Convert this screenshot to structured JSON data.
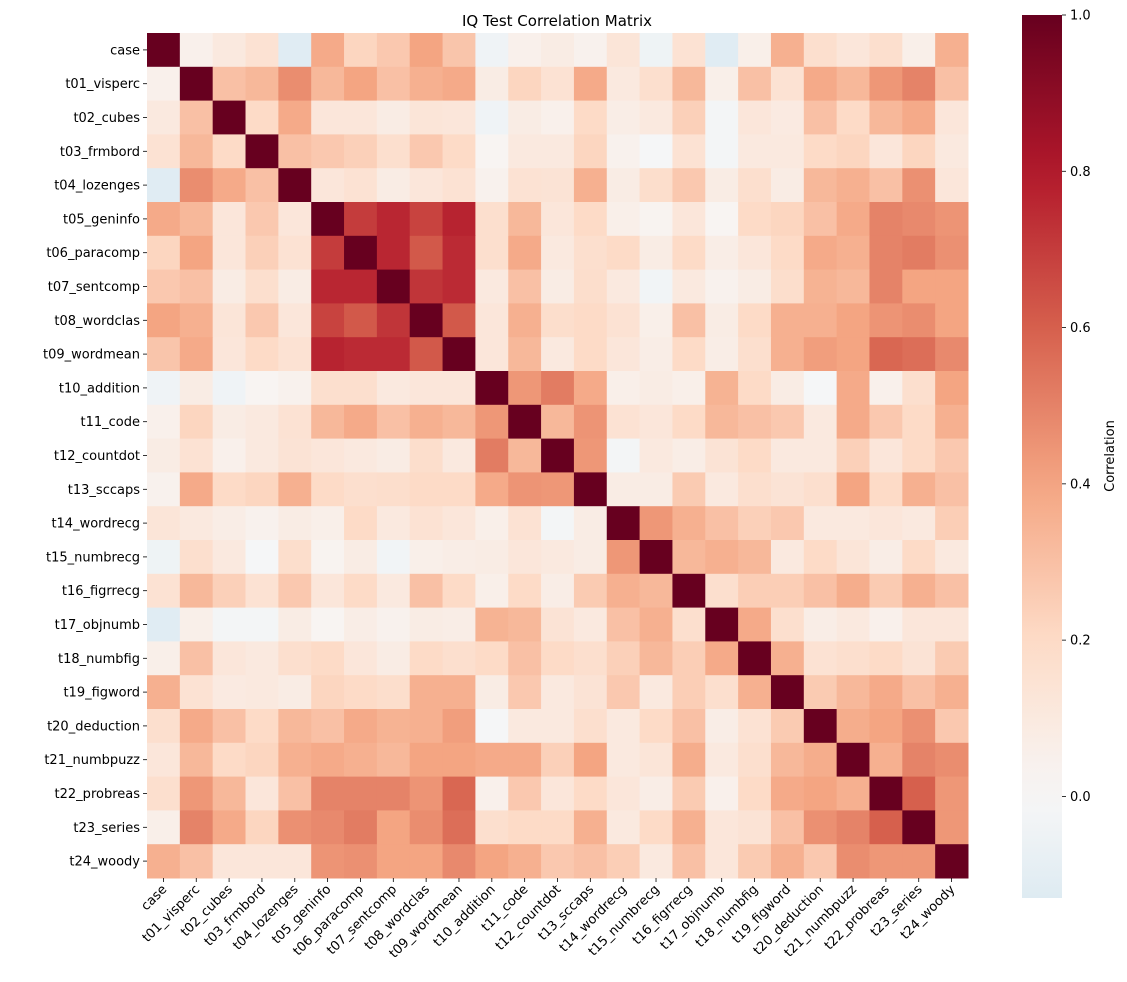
{
  "chart_data": {
    "type": "heatmap",
    "title": "IQ Test Correlation Matrix",
    "labels": [
      "case",
      "t01_visperc",
      "t02_cubes",
      "t03_frmbord",
      "t04_lozenges",
      "t05_geninfo",
      "t06_paracomp",
      "t07_sentcomp",
      "t08_wordclas",
      "t09_wordmean",
      "t10_addition",
      "t11_code",
      "t12_countdot",
      "t13_sccaps",
      "t14_wordrecg",
      "t15_numbrecg",
      "t16_figrrecg",
      "t17_objnumb",
      "t18_numbfig",
      "t19_figword",
      "t20_deduction",
      "t21_numbpuzz",
      "t22_probreas",
      "t23_series",
      "t24_woody"
    ],
    "colorbar": {
      "label": "Correlation",
      "range": [
        -0.13,
        1.0
      ],
      "center": 0,
      "ticks": [
        0.0,
        0.2,
        0.4,
        0.6,
        0.8,
        1.0
      ],
      "tick_labels": [
        "0.0",
        "0.2",
        "0.4",
        "0.6",
        "0.8",
        "1.0"
      ],
      "colormap": "RdBu_r"
    },
    "values": [
      [
        1,
        0.05,
        0.1,
        0.15,
        -0.12,
        0.38,
        0.22,
        0.27,
        0.4,
        0.28,
        -0.04,
        0.05,
        0.08,
        0.04,
        0.13,
        -0.05,
        0.15,
        -0.12,
        0.06,
        0.36,
        0.17,
        0.12,
        0.17,
        0.06,
        0.36
      ],
      [
        0.05,
        1,
        0.3,
        0.33,
        0.47,
        0.33,
        0.4,
        0.3,
        0.36,
        0.38,
        0.08,
        0.22,
        0.15,
        0.38,
        0.1,
        0.17,
        0.33,
        0.06,
        0.3,
        0.15,
        0.38,
        0.33,
        0.44,
        0.5,
        0.3
      ],
      [
        0.1,
        0.3,
        1,
        0.2,
        0.38,
        0.12,
        0.12,
        0.08,
        0.13,
        0.12,
        -0.04,
        0.08,
        0.05,
        0.2,
        0.07,
        0.1,
        0.24,
        -0.02,
        0.12,
        0.09,
        0.3,
        0.2,
        0.33,
        0.38,
        0.12
      ],
      [
        0.15,
        0.33,
        0.2,
        1,
        0.3,
        0.27,
        0.24,
        0.17,
        0.27,
        0.2,
        0.02,
        0.1,
        0.1,
        0.22,
        0.04,
        -0.01,
        0.15,
        -0.02,
        0.1,
        0.1,
        0.2,
        0.22,
        0.12,
        0.22,
        0.1
      ],
      [
        -0.12,
        0.47,
        0.38,
        0.3,
        1,
        0.12,
        0.15,
        0.08,
        0.12,
        0.15,
        0.04,
        0.15,
        0.14,
        0.36,
        0.08,
        0.18,
        0.27,
        0.08,
        0.17,
        0.08,
        0.33,
        0.36,
        0.3,
        0.46,
        0.12
      ],
      [
        0.38,
        0.33,
        0.12,
        0.27,
        0.12,
        1,
        0.7,
        0.76,
        0.68,
        0.77,
        0.17,
        0.33,
        0.12,
        0.2,
        0.06,
        0.03,
        0.12,
        0.02,
        0.2,
        0.22,
        0.3,
        0.38,
        0.5,
        0.48,
        0.45
      ],
      [
        0.22,
        0.4,
        0.12,
        0.24,
        0.15,
        0.7,
        1,
        0.76,
        0.62,
        0.75,
        0.17,
        0.38,
        0.1,
        0.17,
        0.2,
        0.08,
        0.2,
        0.07,
        0.12,
        0.2,
        0.38,
        0.36,
        0.5,
        0.52,
        0.46
      ],
      [
        0.27,
        0.3,
        0.08,
        0.17,
        0.08,
        0.76,
        0.76,
        1,
        0.72,
        0.75,
        0.1,
        0.3,
        0.08,
        0.18,
        0.1,
        -0.03,
        0.1,
        0.04,
        0.08,
        0.18,
        0.35,
        0.33,
        0.5,
        0.4,
        0.4
      ],
      [
        0.4,
        0.36,
        0.13,
        0.27,
        0.12,
        0.68,
        0.62,
        0.72,
        1,
        0.62,
        0.12,
        0.36,
        0.18,
        0.2,
        0.15,
        0.06,
        0.3,
        0.08,
        0.2,
        0.36,
        0.36,
        0.4,
        0.45,
        0.47,
        0.4
      ],
      [
        0.28,
        0.38,
        0.12,
        0.2,
        0.15,
        0.77,
        0.75,
        0.75,
        0.62,
        1,
        0.12,
        0.33,
        0.1,
        0.2,
        0.12,
        0.07,
        0.2,
        0.07,
        0.17,
        0.36,
        0.42,
        0.4,
        0.58,
        0.56,
        0.48
      ],
      [
        -0.04,
        0.08,
        -0.04,
        0.02,
        0.04,
        0.17,
        0.17,
        0.1,
        0.12,
        0.12,
        1,
        0.44,
        0.52,
        0.38,
        0.06,
        0.08,
        0.06,
        0.35,
        0.2,
        0.08,
        -0.01,
        0.38,
        0.05,
        0.17,
        0.4
      ],
      [
        0.05,
        0.22,
        0.08,
        0.1,
        0.15,
        0.33,
        0.38,
        0.3,
        0.36,
        0.33,
        0.44,
        1,
        0.33,
        0.45,
        0.15,
        0.12,
        0.2,
        0.33,
        0.3,
        0.27,
        0.1,
        0.38,
        0.27,
        0.2,
        0.36
      ],
      [
        0.08,
        0.15,
        0.05,
        0.1,
        0.14,
        0.12,
        0.1,
        0.08,
        0.18,
        0.1,
        0.52,
        0.33,
        1,
        0.44,
        -0.02,
        0.1,
        0.07,
        0.14,
        0.2,
        0.1,
        0.1,
        0.24,
        0.12,
        0.2,
        0.27
      ],
      [
        0.04,
        0.38,
        0.2,
        0.22,
        0.36,
        0.2,
        0.17,
        0.18,
        0.2,
        0.2,
        0.38,
        0.45,
        0.44,
        1,
        0.08,
        0.08,
        0.26,
        0.1,
        0.17,
        0.14,
        0.17,
        0.4,
        0.2,
        0.36,
        0.3
      ],
      [
        0.13,
        0.1,
        0.07,
        0.04,
        0.08,
        0.06,
        0.2,
        0.1,
        0.15,
        0.12,
        0.06,
        0.15,
        -0.02,
        0.08,
        1,
        0.44,
        0.36,
        0.3,
        0.24,
        0.27,
        0.1,
        0.1,
        0.12,
        0.1,
        0.25
      ],
      [
        -0.05,
        0.17,
        0.1,
        -0.01,
        0.18,
        0.03,
        0.08,
        -0.03,
        0.06,
        0.07,
        0.08,
        0.12,
        0.1,
        0.08,
        0.44,
        1,
        0.33,
        0.36,
        0.33,
        0.1,
        0.2,
        0.13,
        0.07,
        0.2,
        0.1
      ],
      [
        0.15,
        0.33,
        0.24,
        0.15,
        0.27,
        0.12,
        0.2,
        0.1,
        0.3,
        0.2,
        0.06,
        0.2,
        0.07,
        0.26,
        0.36,
        0.33,
        1,
        0.17,
        0.25,
        0.25,
        0.3,
        0.37,
        0.26,
        0.36,
        0.3
      ],
      [
        -0.12,
        0.06,
        -0.02,
        -0.02,
        0.08,
        0.02,
        0.07,
        0.04,
        0.08,
        0.07,
        0.35,
        0.33,
        0.14,
        0.1,
        0.3,
        0.36,
        0.17,
        1,
        0.38,
        0.17,
        0.07,
        0.1,
        0.05,
        0.12,
        0.12
      ],
      [
        0.06,
        0.3,
        0.12,
        0.1,
        0.17,
        0.2,
        0.12,
        0.08,
        0.2,
        0.17,
        0.2,
        0.3,
        0.2,
        0.17,
        0.24,
        0.33,
        0.25,
        0.38,
        1,
        0.36,
        0.15,
        0.17,
        0.2,
        0.14,
        0.26
      ],
      [
        0.36,
        0.15,
        0.09,
        0.1,
        0.08,
        0.22,
        0.2,
        0.18,
        0.36,
        0.36,
        0.08,
        0.27,
        0.1,
        0.14,
        0.27,
        0.1,
        0.25,
        0.17,
        0.36,
        1,
        0.26,
        0.33,
        0.38,
        0.3,
        0.36
      ],
      [
        0.17,
        0.38,
        0.3,
        0.2,
        0.33,
        0.3,
        0.38,
        0.35,
        0.36,
        0.42,
        -0.01,
        0.1,
        0.1,
        0.17,
        0.1,
        0.2,
        0.3,
        0.07,
        0.15,
        0.26,
        1,
        0.37,
        0.4,
        0.46,
        0.27
      ],
      [
        0.12,
        0.33,
        0.2,
        0.22,
        0.36,
        0.38,
        0.36,
        0.33,
        0.4,
        0.4,
        0.38,
        0.38,
        0.24,
        0.4,
        0.1,
        0.13,
        0.37,
        0.1,
        0.17,
        0.33,
        0.37,
        1,
        0.36,
        0.5,
        0.47
      ],
      [
        0.17,
        0.44,
        0.33,
        0.12,
        0.3,
        0.5,
        0.5,
        0.5,
        0.45,
        0.58,
        0.05,
        0.27,
        0.12,
        0.2,
        0.12,
        0.07,
        0.26,
        0.05,
        0.2,
        0.38,
        0.4,
        0.36,
        1,
        0.6,
        0.44
      ],
      [
        0.06,
        0.5,
        0.38,
        0.22,
        0.46,
        0.48,
        0.52,
        0.4,
        0.47,
        0.56,
        0.17,
        0.2,
        0.2,
        0.36,
        0.1,
        0.2,
        0.36,
        0.12,
        0.14,
        0.3,
        0.46,
        0.5,
        0.6,
        1,
        0.44
      ],
      [
        0.36,
        0.3,
        0.12,
        0.12,
        0.12,
        0.45,
        0.46,
        0.4,
        0.4,
        0.48,
        0.4,
        0.36,
        0.27,
        0.3,
        0.25,
        0.1,
        0.3,
        0.12,
        0.26,
        0.36,
        0.27,
        0.47,
        0.44,
        0.44,
        1
      ]
    ]
  }
}
